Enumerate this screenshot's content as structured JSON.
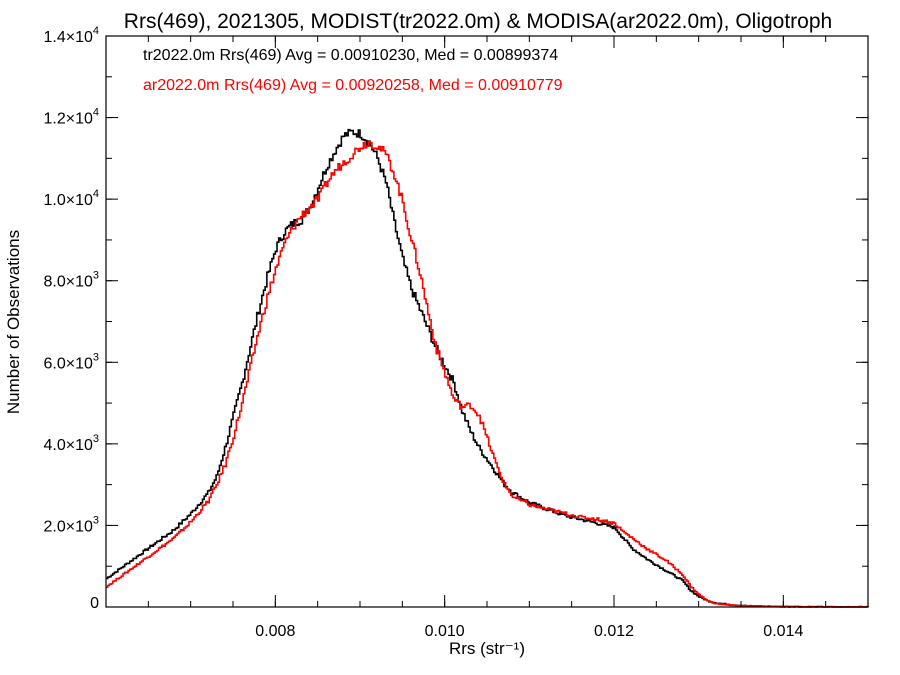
{
  "chart_data": {
    "type": "line",
    "title": "Rrs(469), 2021305, MODIST(tr2022.0m) & MODISA(ar2022.0m), Oligotroph",
    "xlabel": "Rrs (str⁻¹)",
    "ylabel": "Number of Observations",
    "xlim": [
      0.006,
      0.015
    ],
    "ylim": [
      0,
      14000
    ],
    "grid": false,
    "x_ticks": [
      {
        "value": 0.008,
        "label": "0.008"
      },
      {
        "value": 0.01,
        "label": "0.010"
      },
      {
        "value": 0.012,
        "label": "0.012"
      },
      {
        "value": 0.014,
        "label": "0.014"
      }
    ],
    "y_ticks": [
      {
        "value": 0,
        "mant": "0",
        "exp": ""
      },
      {
        "value": 2000,
        "mant": "2.0×10",
        "exp": "3"
      },
      {
        "value": 4000,
        "mant": "4.0×10",
        "exp": "3"
      },
      {
        "value": 6000,
        "mant": "6.0×10",
        "exp": "3"
      },
      {
        "value": 8000,
        "mant": "8.0×10",
        "exp": "3"
      },
      {
        "value": 10000,
        "mant": "1.0×10",
        "exp": "4"
      },
      {
        "value": 12000,
        "mant": "1.2×10",
        "exp": "4"
      },
      {
        "value": 14000,
        "mant": "1.4×10",
        "exp": "4"
      }
    ],
    "x_minor_step": 0.0005,
    "y_minor_step": 1000,
    "annotations": [
      {
        "text": "tr2022.0m Rrs(469) Avg = 0.00910230, Med = 0.00899374",
        "color": "#000000"
      },
      {
        "text": "ar2022.0m Rrs(469) Avg = 0.00920258, Med = 0.00910779",
        "color": "#ff0000"
      }
    ],
    "series": [
      {
        "color": "#000000",
        "x": [
          0.006,
          0.0062,
          0.0064,
          0.0066,
          0.0068,
          0.007,
          0.0072,
          0.0073,
          0.0074,
          0.0075,
          0.0076,
          0.0077,
          0.0078,
          0.0079,
          0.008,
          0.0081,
          0.0082,
          0.0083,
          0.0084,
          0.0085,
          0.0086,
          0.0087,
          0.0088,
          0.0089,
          0.009,
          0.0091,
          0.0092,
          0.0093,
          0.0094,
          0.0095,
          0.0096,
          0.0097,
          0.0098,
          0.0099,
          0.01,
          0.0101,
          0.0102,
          0.0103,
          0.0104,
          0.0105,
          0.0106,
          0.0107,
          0.0108,
          0.011,
          0.0112,
          0.0114,
          0.0116,
          0.0118,
          0.0119,
          0.012,
          0.0121,
          0.0122,
          0.0124,
          0.0126,
          0.0128,
          0.0129,
          0.013,
          0.0131,
          0.0132,
          0.0134,
          0.0136,
          0.014,
          0.0145,
          0.015
        ],
        "values": [
          700,
          1000,
          1300,
          1600,
          1900,
          2300,
          2800,
          3200,
          3900,
          4700,
          5500,
          6400,
          7300,
          8100,
          8800,
          9200,
          9400,
          9500,
          9800,
          10300,
          10800,
          11200,
          11550,
          11650,
          11600,
          11400,
          11000,
          10400,
          9400,
          8500,
          7800,
          7300,
          6800,
          6300,
          5900,
          5500,
          4800,
          4300,
          3900,
          3600,
          3300,
          3000,
          2800,
          2550,
          2400,
          2250,
          2150,
          2050,
          2000,
          1950,
          1700,
          1450,
          1150,
          900,
          650,
          400,
          250,
          150,
          100,
          50,
          25,
          10,
          0,
          0
        ]
      },
      {
        "color": "#ff0000",
        "x": [
          0.006,
          0.0062,
          0.0064,
          0.0066,
          0.0068,
          0.007,
          0.0072,
          0.0073,
          0.0074,
          0.0075,
          0.0076,
          0.0077,
          0.0078,
          0.0079,
          0.008,
          0.0081,
          0.0082,
          0.0083,
          0.0084,
          0.0085,
          0.0086,
          0.0087,
          0.0088,
          0.0089,
          0.009,
          0.0091,
          0.0092,
          0.0093,
          0.0094,
          0.0095,
          0.0096,
          0.0097,
          0.0098,
          0.0099,
          0.01,
          0.0101,
          0.0102,
          0.0103,
          0.0104,
          0.0105,
          0.0106,
          0.0107,
          0.0108,
          0.011,
          0.0112,
          0.0114,
          0.0116,
          0.0118,
          0.0119,
          0.012,
          0.0121,
          0.0122,
          0.0124,
          0.0126,
          0.0128,
          0.0129,
          0.013,
          0.0131,
          0.0132,
          0.0134,
          0.0136,
          0.014,
          0.0145,
          0.015
        ],
        "values": [
          500,
          800,
          1100,
          1400,
          1700,
          2100,
          2600,
          3000,
          3500,
          4200,
          5000,
          5900,
          6800,
          7600,
          8300,
          8900,
          9300,
          9600,
          9800,
          10000,
          10400,
          10700,
          10900,
          11100,
          11300,
          11400,
          11300,
          11100,
          10600,
          9900,
          9000,
          8200,
          7200,
          6300,
          5700,
          5100,
          4900,
          4950,
          4700,
          4100,
          3500,
          3000,
          2700,
          2500,
          2400,
          2300,
          2200,
          2150,
          2100,
          2050,
          1850,
          1700,
          1400,
          1150,
          800,
          500,
          300,
          150,
          80,
          40,
          20,
          10,
          0,
          0
        ]
      }
    ]
  }
}
